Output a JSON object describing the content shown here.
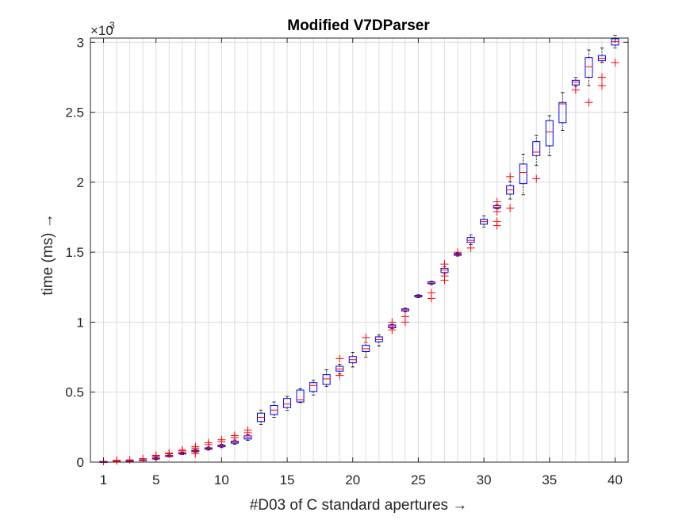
{
  "chart_data": {
    "type": "box",
    "title": "Modified V7DParser",
    "xlabel": "#D03 of C standard apertures →",
    "ylabel": "time (ms) →",
    "y_multiplier_label": "×10",
    "y_multiplier_exponent": "3",
    "xlim": [
      0,
      41
    ],
    "ylim": [
      0,
      3.03
    ],
    "y_unit_scale": 1000,
    "xticks": [
      1,
      5,
      10,
      15,
      20,
      25,
      30,
      35,
      40
    ],
    "xtick_labels": [
      "1",
      "5",
      "10",
      "15",
      "20",
      "25",
      "30",
      "35",
      "40"
    ],
    "yticks": [
      0,
      0.5,
      1,
      1.5,
      2,
      2.5,
      3
    ],
    "ytick_labels": [
      "0",
      "0.5",
      "1",
      "1.5",
      "2",
      "2.5",
      "3"
    ],
    "grid": true,
    "minor_grid_x": true,
    "colors": {
      "box": "#0000ff",
      "median": "#ff0000",
      "whisker": "#000000",
      "outlier": "#ff0000",
      "grid": "#dcdcdc"
    },
    "boxes": [
      {
        "x": 1,
        "q1": 0.001,
        "med": 0.002,
        "q3": 0.003,
        "lo": 0.0,
        "hi": 0.004,
        "out": [
          0.006
        ]
      },
      {
        "x": 2,
        "q1": 0.004,
        "med": 0.005,
        "q3": 0.006,
        "lo": 0.003,
        "hi": 0.007,
        "out": [
          0.01,
          0.013
        ]
      },
      {
        "x": 3,
        "q1": 0.008,
        "med": 0.009,
        "q3": 0.01,
        "lo": 0.007,
        "hi": 0.012,
        "out": [
          0.016
        ]
      },
      {
        "x": 4,
        "q1": 0.013,
        "med": 0.014,
        "q3": 0.016,
        "lo": 0.011,
        "hi": 0.018,
        "out": [
          0.025
        ]
      },
      {
        "x": 5,
        "q1": 0.022,
        "med": 0.026,
        "q3": 0.03,
        "lo": 0.019,
        "hi": 0.034,
        "out": [
          0.042,
          0.048
        ]
      },
      {
        "x": 6,
        "q1": 0.04,
        "med": 0.043,
        "q3": 0.047,
        "lo": 0.037,
        "hi": 0.052,
        "out": [
          0.06,
          0.065
        ]
      },
      {
        "x": 7,
        "q1": 0.058,
        "med": 0.062,
        "q3": 0.067,
        "lo": 0.054,
        "hi": 0.071,
        "out": [
          0.08,
          0.086
        ]
      },
      {
        "x": 8,
        "q1": 0.075,
        "med": 0.08,
        "q3": 0.085,
        "lo": 0.07,
        "hi": 0.09,
        "out": [
          0.06,
          0.1,
          0.11
        ]
      },
      {
        "x": 9,
        "q1": 0.092,
        "med": 0.097,
        "q3": 0.102,
        "lo": 0.086,
        "hi": 0.108,
        "out": [
          0.125,
          0.138
        ]
      },
      {
        "x": 10,
        "q1": 0.11,
        "med": 0.115,
        "q3": 0.122,
        "lo": 0.103,
        "hi": 0.128,
        "out": [
          0.145,
          0.16
        ]
      },
      {
        "x": 11,
        "q1": 0.135,
        "med": 0.142,
        "q3": 0.15,
        "lo": 0.128,
        "hi": 0.158,
        "out": [
          0.175,
          0.19
        ]
      },
      {
        "x": 12,
        "q1": 0.165,
        "med": 0.175,
        "q3": 0.188,
        "lo": 0.155,
        "hi": 0.196,
        "out": [
          0.21,
          0.228
        ]
      },
      {
        "x": 13,
        "q1": 0.29,
        "med": 0.32,
        "q3": 0.35,
        "lo": 0.27,
        "hi": 0.372,
        "out": []
      },
      {
        "x": 14,
        "q1": 0.34,
        "med": 0.372,
        "q3": 0.405,
        "lo": 0.32,
        "hi": 0.43,
        "out": []
      },
      {
        "x": 15,
        "q1": 0.39,
        "med": 0.415,
        "q3": 0.455,
        "lo": 0.37,
        "hi": 0.47,
        "out": []
      },
      {
        "x": 16,
        "q1": 0.43,
        "med": 0.445,
        "q3": 0.515,
        "lo": 0.425,
        "hi": 0.525,
        "out": []
      },
      {
        "x": 17,
        "q1": 0.505,
        "med": 0.548,
        "q3": 0.568,
        "lo": 0.48,
        "hi": 0.585,
        "out": []
      },
      {
        "x": 18,
        "q1": 0.555,
        "med": 0.595,
        "q3": 0.625,
        "lo": 0.54,
        "hi": 0.66,
        "out": []
      },
      {
        "x": 19,
        "q1": 0.65,
        "med": 0.665,
        "q3": 0.685,
        "lo": 0.63,
        "hi": 0.7,
        "out": [
          0.62,
          0.74
        ]
      },
      {
        "x": 20,
        "q1": 0.71,
        "med": 0.732,
        "q3": 0.755,
        "lo": 0.68,
        "hi": 0.785,
        "out": []
      },
      {
        "x": 21,
        "q1": 0.79,
        "med": 0.81,
        "q3": 0.835,
        "lo": 0.75,
        "hi": 0.855,
        "out": [
          0.89
        ]
      },
      {
        "x": 22,
        "q1": 0.86,
        "med": 0.875,
        "q3": 0.895,
        "lo": 0.83,
        "hi": 0.91,
        "out": []
      },
      {
        "x": 23,
        "q1": 0.96,
        "med": 0.97,
        "q3": 0.98,
        "lo": 0.955,
        "hi": 0.985,
        "out": [
          0.945,
          1.0
        ]
      },
      {
        "x": 24,
        "q1": 1.08,
        "med": 1.088,
        "q3": 1.095,
        "lo": 1.075,
        "hi": 1.1,
        "out": [
          1.0,
          1.04
        ]
      },
      {
        "x": 25,
        "q1": 1.18,
        "med": 1.186,
        "q3": 1.192,
        "lo": 1.175,
        "hi": 1.196,
        "out": []
      },
      {
        "x": 26,
        "q1": 1.275,
        "med": 1.28,
        "q3": 1.288,
        "lo": 1.268,
        "hi": 1.292,
        "out": [
          1.17,
          1.21
        ]
      },
      {
        "x": 27,
        "q1": 1.355,
        "med": 1.372,
        "q3": 1.385,
        "lo": 1.345,
        "hi": 1.395,
        "out": [
          1.3,
          1.33,
          1.415
        ]
      },
      {
        "x": 28,
        "q1": 1.478,
        "med": 1.484,
        "q3": 1.49,
        "lo": 1.472,
        "hi": 1.495,
        "out": [
          1.5
        ]
      },
      {
        "x": 29,
        "q1": 1.57,
        "med": 1.585,
        "q3": 1.605,
        "lo": 1.555,
        "hi": 1.625,
        "out": [
          1.53
        ]
      },
      {
        "x": 30,
        "q1": 1.7,
        "med": 1.718,
        "q3": 1.735,
        "lo": 1.68,
        "hi": 1.76,
        "out": []
      },
      {
        "x": 31,
        "q1": 1.815,
        "med": 1.822,
        "q3": 1.832,
        "lo": 1.808,
        "hi": 1.84,
        "out": [
          1.69,
          1.72,
          1.79,
          1.86
        ]
      },
      {
        "x": 32,
        "q1": 1.915,
        "med": 1.945,
        "q3": 1.975,
        "lo": 1.88,
        "hi": 2.005,
        "out": [
          1.815,
          2.04
        ]
      },
      {
        "x": 33,
        "q1": 1.99,
        "med": 2.07,
        "q3": 2.13,
        "lo": 1.91,
        "hi": 2.2,
        "out": []
      },
      {
        "x": 34,
        "q1": 2.19,
        "med": 2.215,
        "q3": 2.29,
        "lo": 2.12,
        "hi": 2.335,
        "out": [
          2.025
        ]
      },
      {
        "x": 35,
        "q1": 2.26,
        "med": 2.36,
        "q3": 2.44,
        "lo": 2.19,
        "hi": 2.475,
        "out": []
      },
      {
        "x": 36,
        "q1": 2.425,
        "med": 2.56,
        "q3": 2.57,
        "lo": 2.37,
        "hi": 2.64,
        "out": []
      },
      {
        "x": 37,
        "q1": 2.695,
        "med": 2.715,
        "q3": 2.728,
        "lo": 2.685,
        "hi": 2.748,
        "out": [
          2.66
        ]
      },
      {
        "x": 38,
        "q1": 2.75,
        "med": 2.825,
        "q3": 2.89,
        "lo": 2.69,
        "hi": 2.945,
        "out": [
          2.57
        ]
      },
      {
        "x": 39,
        "q1": 2.868,
        "med": 2.885,
        "q3": 2.905,
        "lo": 2.855,
        "hi": 2.96,
        "out": [
          2.69,
          2.75
        ]
      },
      {
        "x": 40,
        "q1": 2.98,
        "med": 3.005,
        "q3": 3.025,
        "lo": 2.96,
        "hi": 3.05,
        "out": [
          2.855
        ]
      }
    ]
  }
}
